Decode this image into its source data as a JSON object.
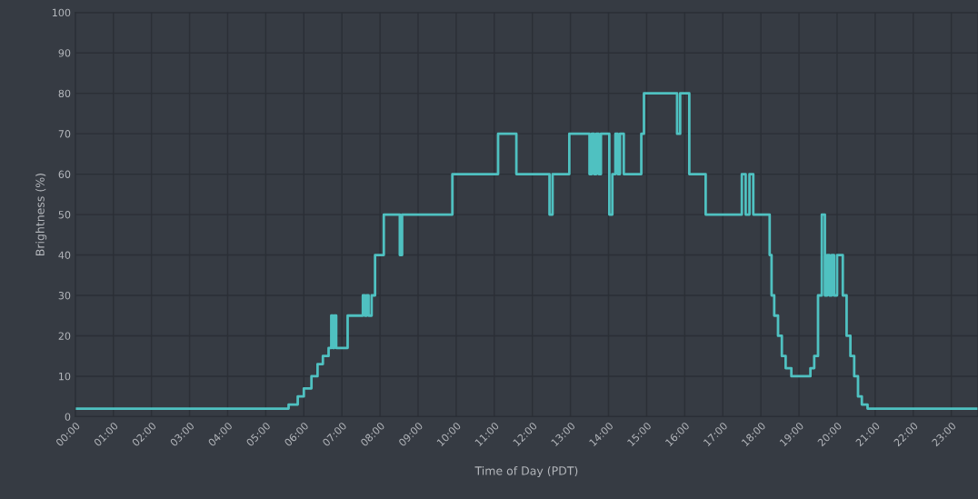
{
  "chart_data": {
    "type": "step",
    "xlabel": "Time of Day (PDT)",
    "ylabel": "Brightness (%)",
    "x": [
      0,
      5.6,
      5.84,
      6.0,
      6.2,
      6.36,
      6.5,
      6.65,
      6.72,
      6.76,
      6.8,
      6.85,
      7.15,
      7.55,
      7.6,
      7.65,
      7.7,
      7.78,
      7.87,
      8.1,
      8.52,
      8.58,
      9.9,
      11.1,
      11.58,
      12.45,
      12.53,
      12.97,
      13.5,
      13.56,
      13.62,
      13.68,
      13.74,
      13.8,
      14.02,
      14.1,
      14.18,
      14.24,
      14.3,
      14.4,
      14.86,
      14.93,
      15.8,
      15.88,
      16.12,
      16.55,
      17.5,
      17.6,
      17.7,
      17.8,
      18.23,
      18.28,
      18.35,
      18.45,
      18.55,
      18.65,
      18.8,
      19.3,
      19.4,
      19.5,
      19.6,
      19.68,
      19.74,
      19.8,
      19.86,
      19.92,
      20.0,
      20.15,
      20.25,
      20.35,
      20.45,
      20.55,
      20.65,
      20.8,
      23.7
    ],
    "series": [
      {
        "color": "#4fc1c1",
        "values": [
          2,
          3,
          5,
          7,
          10,
          13,
          15,
          17,
          25,
          17,
          25,
          17,
          25,
          30,
          25,
          30,
          25,
          30,
          40,
          50,
          40,
          50,
          60,
          70,
          60,
          50,
          60,
          70,
          60,
          70,
          60,
          70,
          60,
          70,
          50,
          60,
          70,
          60,
          70,
          60,
          70,
          80,
          70,
          80,
          60,
          50,
          60,
          50,
          60,
          50,
          40,
          30,
          25,
          20,
          15,
          12,
          10,
          12,
          15,
          30,
          50,
          30,
          40,
          30,
          40,
          30,
          40,
          30,
          20,
          15,
          10,
          5,
          3,
          2,
          2
        ]
      }
    ],
    "xlim": [
      0,
      23.7
    ],
    "ylim": [
      0,
      100
    ],
    "yticks": [
      0,
      10,
      20,
      30,
      40,
      50,
      60,
      70,
      80,
      90,
      100
    ],
    "xticks": [
      {
        "value": 0,
        "label": "00:00"
      },
      {
        "value": 1,
        "label": "01:00"
      },
      {
        "value": 2,
        "label": "02:00"
      },
      {
        "value": 3,
        "label": "03:00"
      },
      {
        "value": 4,
        "label": "04:00"
      },
      {
        "value": 5,
        "label": "05:00"
      },
      {
        "value": 6,
        "label": "06:00"
      },
      {
        "value": 7,
        "label": "07:00"
      },
      {
        "value": 8,
        "label": "08:00"
      },
      {
        "value": 9,
        "label": "09:00"
      },
      {
        "value": 10,
        "label": "10:00"
      },
      {
        "value": 11,
        "label": "11:00"
      },
      {
        "value": 12,
        "label": "12:00"
      },
      {
        "value": 13,
        "label": "13:00"
      },
      {
        "value": 14,
        "label": "14:00"
      },
      {
        "value": 15,
        "label": "15:00"
      },
      {
        "value": 16,
        "label": "16:00"
      },
      {
        "value": 17,
        "label": "17:00"
      },
      {
        "value": 18,
        "label": "18:00"
      },
      {
        "value": 19,
        "label": "19:00"
      },
      {
        "value": 20,
        "label": "20:00"
      },
      {
        "value": 21,
        "label": "21:00"
      },
      {
        "value": 22,
        "label": "22:00"
      },
      {
        "value": 23,
        "label": "23:00"
      }
    ],
    "grid": true
  }
}
